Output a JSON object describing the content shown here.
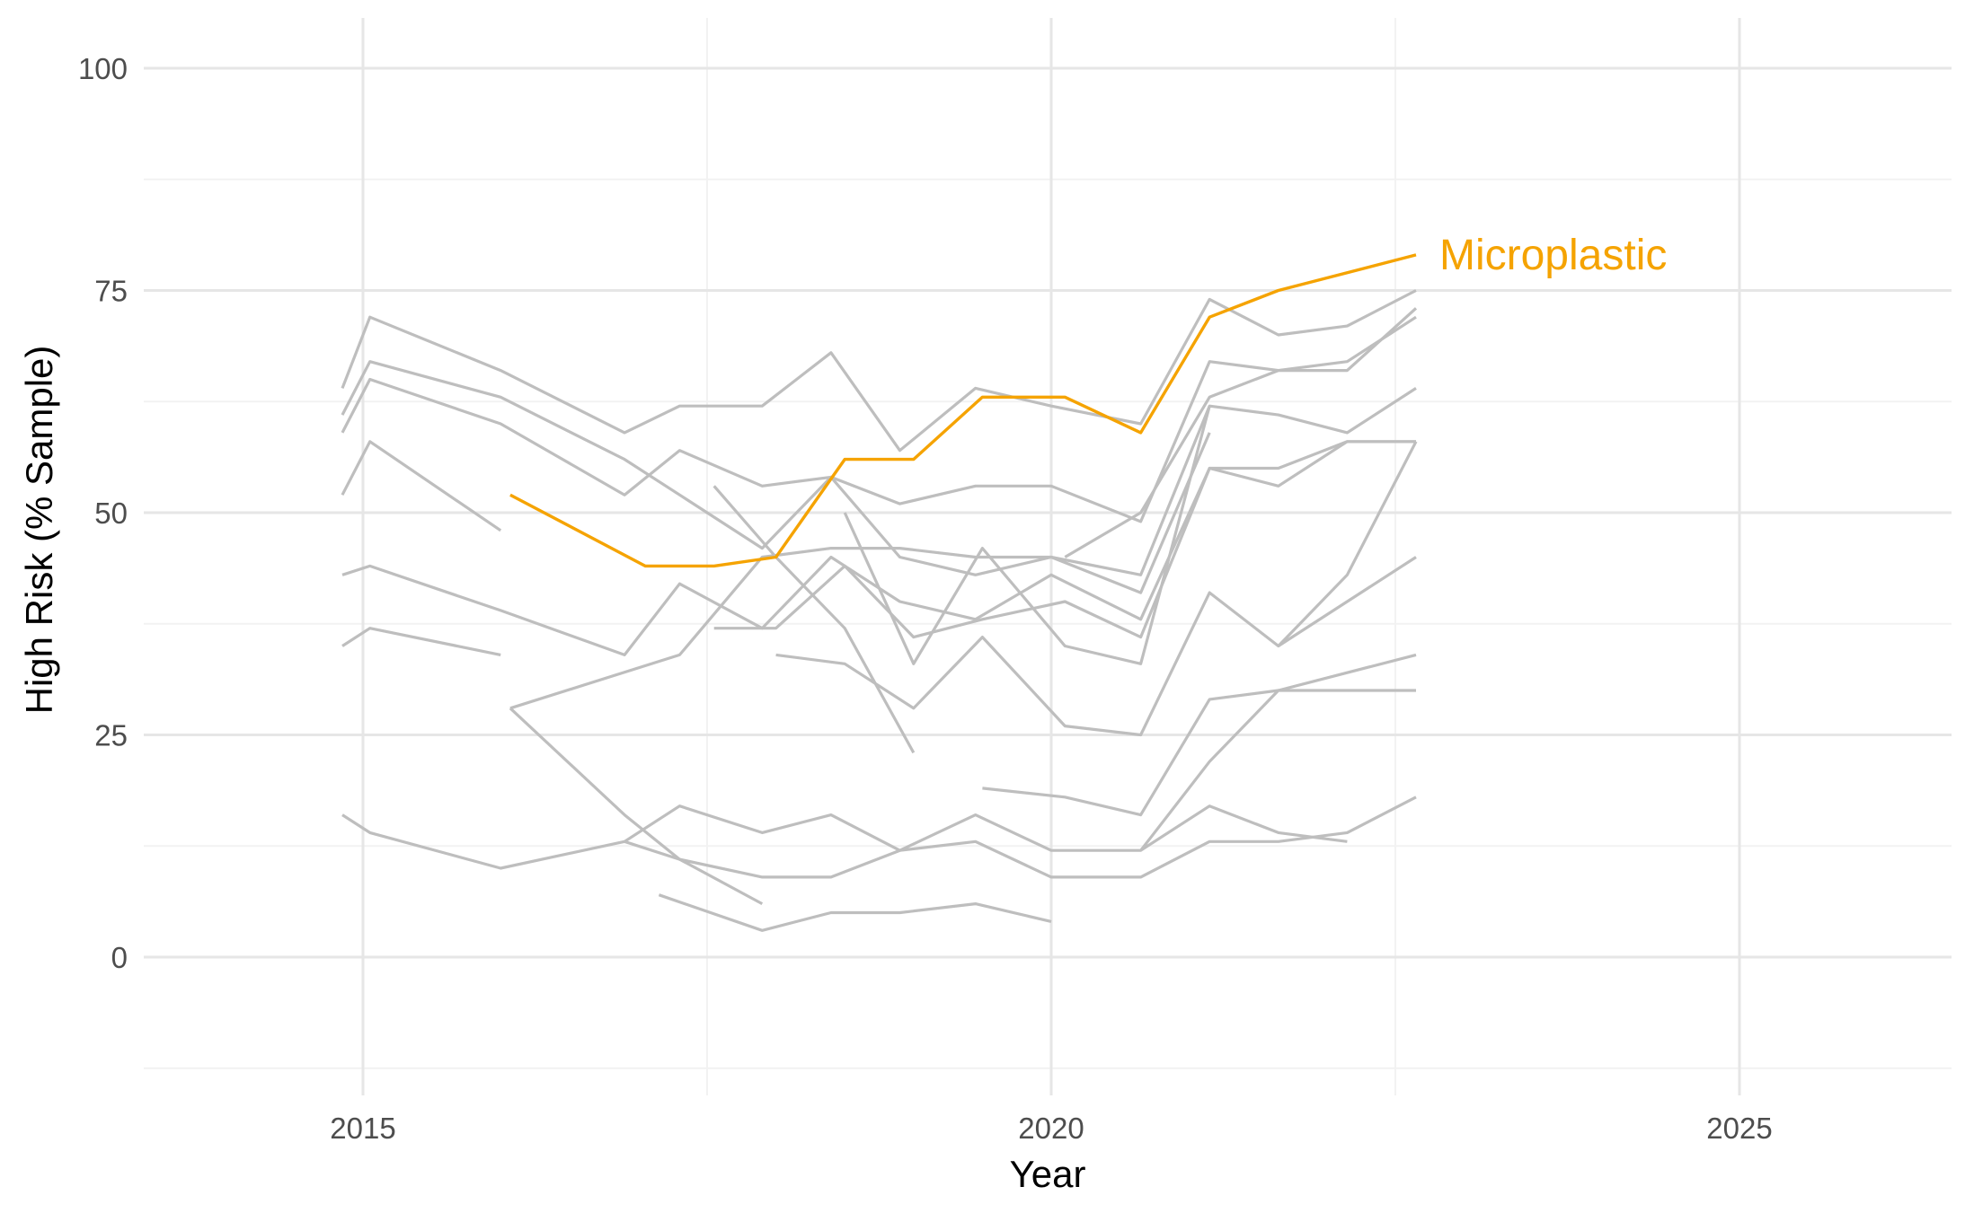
{
  "chart_data": {
    "type": "line",
    "title": "",
    "xlabel": "Year",
    "ylabel": "High Risk (% Sample)",
    "xlim": [
      2013.4,
      2026.5
    ],
    "ylim": [
      -12.5,
      105
    ],
    "x_ticks": [
      2015,
      2020,
      2025
    ],
    "x_tick_labels": [
      "2015",
      "2020",
      "2025"
    ],
    "y_ticks": [
      0,
      25,
      50,
      75,
      100
    ],
    "y_tick_labels": [
      "0",
      "25",
      "50",
      "75",
      "100"
    ],
    "grid": true,
    "legend": "none",
    "colors": {
      "highlight": "#f5a300",
      "background_series": "#bebebe",
      "grid_major": "#e6e6e6",
      "grid_minor": "#f2f2f2"
    },
    "highlight_series": {
      "name": "Microplastic",
      "points": [
        [
          2016.07,
          52
        ],
        [
          2017.05,
          44
        ],
        [
          2017.55,
          44
        ],
        [
          2018.0,
          45
        ],
        [
          2018.5,
          56
        ],
        [
          2019.0,
          56
        ],
        [
          2019.5,
          63
        ],
        [
          2020.1,
          63
        ],
        [
          2020.65,
          59
        ],
        [
          2021.15,
          72
        ],
        [
          2021.65,
          75
        ],
        [
          2022.65,
          79
        ]
      ]
    },
    "background_series": [
      {
        "points": [
          [
            2014.85,
            64
          ],
          [
            2015.05,
            72
          ],
          [
            2016.0,
            66
          ],
          [
            2016.9,
            59
          ],
          [
            2017.3,
            62
          ],
          [
            2017.9,
            62
          ],
          [
            2018.4,
            68
          ],
          [
            2018.9,
            57
          ],
          [
            2019.45,
            64
          ],
          [
            2020.0,
            62
          ],
          [
            2020.65,
            60
          ],
          [
            2021.15,
            74
          ],
          [
            2021.65,
            70
          ],
          [
            2022.15,
            71
          ],
          [
            2022.65,
            75
          ]
        ]
      },
      {
        "points": [
          [
            2014.85,
            61
          ],
          [
            2015.05,
            67
          ],
          [
            2016.0,
            63
          ],
          [
            2016.9,
            56
          ],
          [
            2017.3,
            52
          ],
          [
            2017.9,
            46
          ],
          [
            2018.4,
            54
          ],
          [
            2018.9,
            51
          ],
          [
            2019.45,
            53
          ],
          [
            2020.0,
            53
          ],
          [
            2020.65,
            49
          ],
          [
            2021.15,
            67
          ],
          [
            2021.65,
            66
          ],
          [
            2022.15,
            66
          ],
          [
            2022.65,
            73
          ]
        ]
      },
      {
        "points": [
          [
            2014.85,
            59
          ],
          [
            2015.05,
            65
          ],
          [
            2016.0,
            60
          ],
          [
            2016.9,
            52
          ],
          [
            2017.3,
            57
          ],
          [
            2017.9,
            53
          ],
          [
            2018.4,
            54
          ],
          [
            2018.9,
            45
          ],
          [
            2019.45,
            43
          ],
          [
            2020.0,
            45
          ],
          [
            2020.65,
            43
          ],
          [
            2021.15,
            62
          ],
          [
            2021.65,
            61
          ],
          [
            2022.15,
            59
          ],
          [
            2022.65,
            64
          ]
        ]
      },
      {
        "points": [
          [
            2014.85,
            52
          ],
          [
            2015.05,
            58
          ],
          [
            2016.0,
            48
          ]
        ]
      },
      {
        "points": [
          [
            2014.85,
            43
          ],
          [
            2015.05,
            44
          ],
          [
            2016.0,
            39
          ],
          [
            2016.9,
            34
          ],
          [
            2017.3,
            42
          ],
          [
            2017.9,
            37
          ],
          [
            2018.4,
            45
          ],
          [
            2018.9,
            40
          ],
          [
            2019.45,
            38
          ],
          [
            2020.0,
            43
          ],
          [
            2020.65,
            38
          ],
          [
            2021.15,
            55
          ],
          [
            2021.65,
            55
          ],
          [
            2022.15,
            58
          ],
          [
            2022.65,
            58
          ]
        ]
      },
      {
        "points": [
          [
            2014.85,
            35
          ],
          [
            2015.05,
            37
          ],
          [
            2016.0,
            34
          ]
        ]
      },
      {
        "points": [
          [
            2016.07,
            28
          ],
          [
            2017.3,
            34
          ],
          [
            2017.9,
            45
          ],
          [
            2018.4,
            46
          ],
          [
            2018.9,
            46
          ],
          [
            2019.45,
            45
          ],
          [
            2020.0,
            45
          ],
          [
            2020.65,
            41
          ],
          [
            2021.15,
            59
          ]
        ]
      },
      {
        "points": [
          [
            2016.07,
            28
          ],
          [
            2016.9,
            16
          ],
          [
            2017.3,
            11
          ],
          [
            2017.9,
            6
          ]
        ]
      },
      {
        "points": [
          [
            2014.85,
            16
          ],
          [
            2015.05,
            14
          ],
          [
            2016.0,
            10
          ],
          [
            2016.9,
            13
          ],
          [
            2017.3,
            17
          ],
          [
            2017.9,
            14
          ],
          [
            2018.4,
            16
          ],
          [
            2018.9,
            12
          ],
          [
            2019.45,
            13
          ],
          [
            2020.0,
            9
          ],
          [
            2020.65,
            9
          ],
          [
            2021.15,
            13
          ],
          [
            2021.65,
            13
          ],
          [
            2022.15,
            14
          ],
          [
            2022.65,
            18
          ]
        ]
      },
      {
        "points": [
          [
            2016.9,
            13
          ],
          [
            2017.3,
            11
          ],
          [
            2017.9,
            9
          ],
          [
            2018.4,
            9
          ],
          [
            2018.9,
            12
          ],
          [
            2019.45,
            16
          ],
          [
            2020.0,
            12
          ],
          [
            2020.65,
            12
          ],
          [
            2021.15,
            17
          ],
          [
            2021.65,
            14
          ],
          [
            2022.15,
            13
          ]
        ]
      },
      {
        "points": [
          [
            2017.15,
            7
          ],
          [
            2017.9,
            3
          ],
          [
            2018.4,
            5
          ],
          [
            2018.9,
            5
          ],
          [
            2019.45,
            6
          ],
          [
            2020.0,
            4
          ]
        ]
      },
      {
        "points": [
          [
            2017.55,
            53
          ],
          [
            2018.0,
            45
          ],
          [
            2018.5,
            37
          ],
          [
            2019.0,
            23
          ]
        ]
      },
      {
        "points": [
          [
            2017.55,
            37
          ],
          [
            2018.0,
            37
          ],
          [
            2018.5,
            44
          ],
          [
            2019.0,
            36
          ],
          [
            2019.5,
            38
          ],
          [
            2020.1,
            40
          ],
          [
            2020.65,
            36
          ],
          [
            2021.15,
            55
          ],
          [
            2021.65,
            53
          ],
          [
            2022.15,
            58
          ],
          [
            2022.65,
            58
          ]
        ]
      },
      {
        "points": [
          [
            2018.0,
            34
          ],
          [
            2018.5,
            33
          ],
          [
            2019.0,
            28
          ],
          [
            2019.5,
            36
          ],
          [
            2020.1,
            26
          ],
          [
            2020.65,
            25
          ],
          [
            2021.15,
            41
          ],
          [
            2021.65,
            35
          ],
          [
            2022.15,
            43
          ],
          [
            2022.65,
            58
          ]
        ]
      },
      {
        "points": [
          [
            2018.5,
            50
          ],
          [
            2019.0,
            33
          ],
          [
            2019.5,
            46
          ],
          [
            2020.1,
            35
          ],
          [
            2020.65,
            33
          ],
          [
            2021.15,
            62
          ]
        ]
      },
      {
        "points": [
          [
            2019.5,
            19
          ],
          [
            2020.1,
            18
          ],
          [
            2020.65,
            16
          ],
          [
            2021.15,
            29
          ],
          [
            2021.65,
            30
          ],
          [
            2022.65,
            34
          ]
        ]
      },
      {
        "points": [
          [
            2020.65,
            12
          ],
          [
            2021.15,
            22
          ],
          [
            2021.65,
            30
          ],
          [
            2022.15,
            30
          ],
          [
            2022.65,
            30
          ]
        ]
      },
      {
        "points": [
          [
            2021.65,
            35
          ],
          [
            2022.15,
            40
          ],
          [
            2022.65,
            45
          ]
        ]
      },
      {
        "points": [
          [
            2020.1,
            45
          ],
          [
            2020.65,
            50
          ],
          [
            2021.15,
            63
          ],
          [
            2021.65,
            66
          ],
          [
            2022.15,
            67
          ],
          [
            2022.65,
            72
          ]
        ]
      }
    ]
  }
}
